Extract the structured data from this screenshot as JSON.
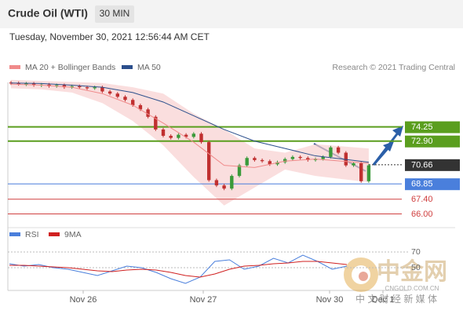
{
  "chart_data": {
    "type": "candlestick",
    "title": "Crude Oil (WTI)",
    "interval": "30 MIN",
    "subtitle": "Tuesday, November 30, 2021 12:56:44 AM CET",
    "credit": "Research © 2021 Trading Central",
    "x_labels": [
      "Nov 26",
      "Nov 27",
      "Nov 30",
      "Dec 1"
    ],
    "ylim": [
      64.7,
      79.2
    ],
    "closes": [
      78.4,
      78.3,
      78.35,
      78.2,
      78.25,
      78.1,
      78.2,
      78.0,
      78.1,
      78.0,
      77.9,
      78.0,
      77.6,
      77.4,
      77.1,
      76.8,
      76.3,
      75.9,
      75.2,
      74.0,
      73.4,
      73.2,
      73.5,
      73.3,
      73.6,
      72.8,
      69.2,
      68.7,
      68.4,
      69.6,
      70.6,
      71.3,
      71.1,
      71.0,
      70.7,
      70.9,
      71.2,
      71.4,
      71.3,
      71.1,
      71.2,
      71.4,
      72.3,
      71.8,
      70.6,
      70.8,
      69.1,
      70.6
    ],
    "line_x": [
      0,
      4,
      8,
      12,
      16,
      20,
      24,
      28,
      32,
      36,
      40,
      47
    ],
    "series": [
      {
        "name": "MA 20 + Bollinger Bands",
        "color": "#f08a8a",
        "values": [
          78.3,
          78.2,
          78.0,
          77.4,
          76.3,
          74.6,
          72.8,
          70.6,
          70.4,
          71.0,
          71.2,
          70.8
        ],
        "upper": [
          78.7,
          78.6,
          78.5,
          78.4,
          78.0,
          77.4,
          75.5,
          74.0,
          72.2,
          71.8,
          72.6,
          72.2
        ],
        "lower": [
          77.9,
          77.8,
          77.5,
          76.5,
          74.8,
          72.5,
          69.5,
          66.8,
          68.5,
          70.2,
          69.6,
          69.0
        ]
      },
      {
        "name": "MA 50",
        "color": "#2b4f8c",
        "values": [
          78.4,
          78.35,
          78.2,
          78.0,
          77.5,
          76.6,
          75.3,
          74.0,
          72.9,
          72.2,
          71.5,
          70.9
        ]
      }
    ],
    "levels": [
      {
        "value": 74.25,
        "color": "#5a9e1e"
      },
      {
        "value": 72.9,
        "label": "72.90",
        "color": "#5a9e1e"
      },
      {
        "value": 70.66,
        "color": "#333333"
      },
      {
        "value": 68.85,
        "color": "#4a7fdc"
      },
      {
        "value": 67.4,
        "label": "67.40",
        "color": "#d04040"
      },
      {
        "value": 66,
        "label": "66.00",
        "color": "#d04040"
      }
    ],
    "rsi": {
      "ylim": [
        -5,
        95
      ],
      "yticks": [
        70,
        50
      ],
      "series": [
        {
          "name": "RSI",
          "color": "#4a7fdc",
          "values": [
            55,
            52,
            54,
            50,
            48,
            44,
            40,
            46,
            52,
            50,
            44,
            36,
            30,
            38,
            58,
            60,
            48,
            52,
            62,
            56,
            66,
            58,
            48,
            52
          ]
        },
        {
          "name": "9MA",
          "color": "#d02020",
          "values": [
            53,
            53,
            52,
            51,
            50,
            48,
            46,
            45,
            47,
            48,
            47,
            44,
            40,
            38,
            42,
            48,
            52,
            53,
            55,
            56,
            58,
            58,
            56,
            54
          ]
        }
      ]
    },
    "watermark": {
      "logo": "中金网",
      "site": "CNGOLD.COM.CN",
      "slogan": "中 文 财 经 新 媒 体"
    }
  }
}
